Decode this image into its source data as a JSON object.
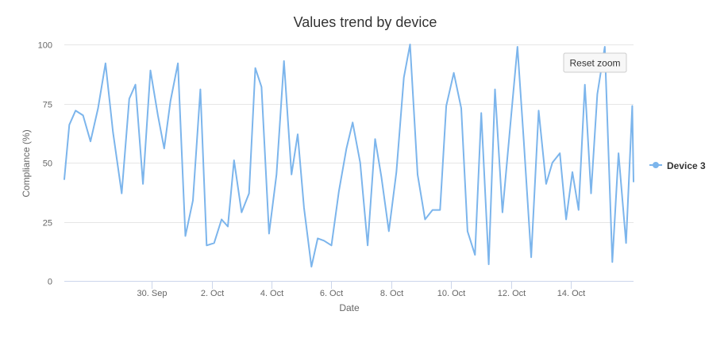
{
  "chart_data": {
    "type": "line",
    "title": "Values trend by device",
    "xlabel": "Date",
    "ylabel": "Compliance (%)",
    "ylim": [
      0,
      100
    ],
    "yticks": [
      0,
      25,
      50,
      75,
      100
    ],
    "xlim": [
      "2024-09-27T02:00",
      "2024-10-16T02:00"
    ],
    "xticks": [
      {
        "date": "2024-09-30",
        "label": "30. Sep"
      },
      {
        "date": "2024-10-02",
        "label": "2. Oct"
      },
      {
        "date": "2024-10-04",
        "label": "4. Oct"
      },
      {
        "date": "2024-10-06",
        "label": "6. Oct"
      },
      {
        "date": "2024-10-08",
        "label": "8. Oct"
      },
      {
        "date": "2024-10-10",
        "label": "10. Oct"
      },
      {
        "date": "2024-10-12",
        "label": "12. Oct"
      },
      {
        "date": "2024-10-14",
        "label": "14. Oct"
      }
    ],
    "grid": "horizontal",
    "legend": "right",
    "series": [
      {
        "name": "Device 3",
        "color": "#7cb5ec",
        "x": [
          "2024-09-27T02:00",
          "2024-09-27T06:00",
          "2024-09-27T11:00",
          "2024-09-27T17:00",
          "2024-09-27T23:00",
          "2024-09-28T05:00",
          "2024-09-28T11:00",
          "2024-09-28T17:00",
          "2024-09-29T00:00",
          "2024-09-29T06:00",
          "2024-09-29T11:00",
          "2024-09-29T17:00",
          "2024-09-29T23:00",
          "2024-09-30T05:00",
          "2024-09-30T10:00",
          "2024-09-30T15:00",
          "2024-09-30T21:00",
          "2024-10-01T03:00",
          "2024-10-01T09:00",
          "2024-10-01T15:00",
          "2024-10-01T20:00",
          "2024-10-02T02:00",
          "2024-10-02T08:00",
          "2024-10-02T13:00",
          "2024-10-02T18:00",
          "2024-10-03T00:00",
          "2024-10-03T06:00",
          "2024-10-03T11:00",
          "2024-10-03T16:00",
          "2024-10-03T22:00",
          "2024-10-04T04:00",
          "2024-10-04T10:00",
          "2024-10-04T16:00",
          "2024-10-04T21:00",
          "2024-10-05T02:00",
          "2024-10-05T08:00",
          "2024-10-05T13:00",
          "2024-10-05T18:00",
          "2024-10-06T00:00",
          "2024-10-06T06:00",
          "2024-10-06T12:00",
          "2024-10-06T17:00",
          "2024-10-06T23:00",
          "2024-10-07T05:00",
          "2024-10-07T11:00",
          "2024-10-07T16:00",
          "2024-10-07T22:00",
          "2024-10-08T04:00",
          "2024-10-08T10:00",
          "2024-10-08T15:00",
          "2024-10-08T21:00",
          "2024-10-09T03:00",
          "2024-10-09T09:00",
          "2024-10-09T15:00",
          "2024-10-09T20:00",
          "2024-10-10T02:00",
          "2024-10-10T08:00",
          "2024-10-10T13:00",
          "2024-10-10T19:00",
          "2024-10-11T00:00",
          "2024-10-11T06:00",
          "2024-10-11T11:00",
          "2024-10-11T17:00",
          "2024-10-11T23:00",
          "2024-10-12T05:00",
          "2024-10-12T10:00",
          "2024-10-12T16:00",
          "2024-10-12T22:00",
          "2024-10-13T04:00",
          "2024-10-13T09:00",
          "2024-10-13T15:00",
          "2024-10-13T20:00",
          "2024-10-14T01:00",
          "2024-10-14T06:00",
          "2024-10-14T11:00",
          "2024-10-14T16:00",
          "2024-10-14T21:00",
          "2024-10-15T03:00",
          "2024-10-15T09:00",
          "2024-10-15T14:00",
          "2024-10-15T20:00",
          "2024-10-16T01:00",
          "2024-10-16T02:00"
        ],
        "values": [
          43,
          66,
          72,
          70,
          59,
          73,
          92,
          63,
          37,
          77,
          83,
          41,
          89,
          70,
          56,
          76,
          92,
          19,
          34,
          81,
          15,
          16,
          26,
          23,
          51,
          29,
          37,
          90,
          82,
          20,
          45,
          93,
          45,
          62,
          31,
          6,
          18,
          17,
          15,
          38,
          56,
          67,
          50,
          15,
          60,
          44,
          21,
          46,
          86,
          100,
          45,
          26,
          30,
          30,
          74,
          88,
          73,
          21,
          11,
          71,
          7,
          81,
          29,
          64,
          99,
          60,
          10,
          72,
          41,
          50,
          54,
          26,
          46,
          30,
          83,
          37,
          79,
          99,
          8,
          54,
          16,
          74,
          42
        ]
      }
    ]
  },
  "controls": {
    "reset_zoom_label": "Reset zoom"
  }
}
